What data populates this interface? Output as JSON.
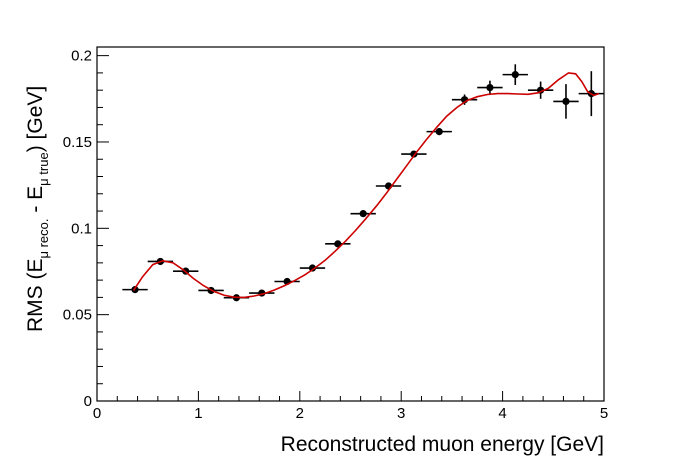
{
  "chart_data": {
    "type": "scatter",
    "xlabel": "Reconstructed muon energy [GeV]",
    "ylabel": {
      "prefix": "RMS (E",
      "sub1": "μ reco.",
      "mid": " - E",
      "sub2": "μ true",
      "suffix": ") [GeV]"
    },
    "xlim": [
      0,
      5
    ],
    "ylim": [
      0,
      0.205
    ],
    "xticks": [
      "0",
      "1",
      "2",
      "3",
      "4",
      "5"
    ],
    "yticks": [
      "0",
      "0.05",
      "0.1",
      "0.15",
      "0.2"
    ],
    "grid": false,
    "marker_color": "#000000",
    "curve_color": "#cc0000",
    "points": [
      {
        "x": 0.375,
        "y": 0.0645,
        "xerr": 0.125,
        "yerr": 0.0015
      },
      {
        "x": 0.625,
        "y": 0.0808,
        "xerr": 0.125,
        "yerr": 0.0015
      },
      {
        "x": 0.875,
        "y": 0.0752,
        "xerr": 0.125,
        "yerr": 0.0015
      },
      {
        "x": 1.125,
        "y": 0.064,
        "xerr": 0.125,
        "yerr": 0.0015
      },
      {
        "x": 1.375,
        "y": 0.0598,
        "xerr": 0.125,
        "yerr": 0.0015
      },
      {
        "x": 1.625,
        "y": 0.0625,
        "xerr": 0.125,
        "yerr": 0.0015
      },
      {
        "x": 1.875,
        "y": 0.0692,
        "xerr": 0.125,
        "yerr": 0.0015
      },
      {
        "x": 2.125,
        "y": 0.077,
        "xerr": 0.125,
        "yerr": 0.0015
      },
      {
        "x": 2.375,
        "y": 0.091,
        "xerr": 0.125,
        "yerr": 0.0015
      },
      {
        "x": 2.625,
        "y": 0.1085,
        "xerr": 0.125,
        "yerr": 0.0015
      },
      {
        "x": 2.875,
        "y": 0.1245,
        "xerr": 0.125,
        "yerr": 0.0015
      },
      {
        "x": 3.125,
        "y": 0.143,
        "xerr": 0.125,
        "yerr": 0.0015
      },
      {
        "x": 3.375,
        "y": 0.156,
        "xerr": 0.125,
        "yerr": 0.002
      },
      {
        "x": 3.625,
        "y": 0.1745,
        "xerr": 0.125,
        "yerr": 0.003
      },
      {
        "x": 3.875,
        "y": 0.1815,
        "xerr": 0.125,
        "yerr": 0.004
      },
      {
        "x": 4.125,
        "y": 0.189,
        "xerr": 0.125,
        "yerr": 0.006
      },
      {
        "x": 4.375,
        "y": 0.18,
        "xerr": 0.125,
        "yerr": 0.005
      },
      {
        "x": 4.625,
        "y": 0.1735,
        "xerr": 0.125,
        "yerr": 0.01
      },
      {
        "x": 4.875,
        "y": 0.178,
        "xerr": 0.125,
        "yerr": 0.013
      }
    ],
    "fit_curve": [
      [
        0.36,
        0.064
      ],
      [
        0.45,
        0.072
      ],
      [
        0.55,
        0.079
      ],
      [
        0.65,
        0.0812
      ],
      [
        0.75,
        0.08
      ],
      [
        0.85,
        0.076
      ],
      [
        0.95,
        0.071
      ],
      [
        1.05,
        0.0668
      ],
      [
        1.15,
        0.0635
      ],
      [
        1.25,
        0.0613
      ],
      [
        1.35,
        0.0601
      ],
      [
        1.45,
        0.06
      ],
      [
        1.55,
        0.0608
      ],
      [
        1.65,
        0.0622
      ],
      [
        1.75,
        0.0643
      ],
      [
        1.85,
        0.0668
      ],
      [
        1.95,
        0.0697
      ],
      [
        2.05,
        0.0731
      ],
      [
        2.15,
        0.077
      ],
      [
        2.25,
        0.0815
      ],
      [
        2.35,
        0.0868
      ],
      [
        2.45,
        0.0925
      ],
      [
        2.55,
        0.0988
      ],
      [
        2.65,
        0.1055
      ],
      [
        2.75,
        0.1125
      ],
      [
        2.85,
        0.12
      ],
      [
        2.95,
        0.128
      ],
      [
        3.05,
        0.136
      ],
      [
        3.15,
        0.144
      ],
      [
        3.25,
        0.1515
      ],
      [
        3.35,
        0.1585
      ],
      [
        3.45,
        0.165
      ],
      [
        3.55,
        0.17
      ],
      [
        3.65,
        0.174
      ],
      [
        3.75,
        0.1762
      ],
      [
        3.85,
        0.1775
      ],
      [
        3.95,
        0.178
      ],
      [
        4.05,
        0.178
      ],
      [
        4.15,
        0.1778
      ],
      [
        4.25,
        0.1776
      ],
      [
        4.35,
        0.1785
      ],
      [
        4.45,
        0.181
      ],
      [
        4.55,
        0.186
      ],
      [
        4.65,
        0.19
      ],
      [
        4.72,
        0.1895
      ],
      [
        4.78,
        0.185
      ],
      [
        4.84,
        0.179
      ],
      [
        4.9,
        0.177
      ],
      [
        4.95,
        0.178
      ]
    ]
  }
}
